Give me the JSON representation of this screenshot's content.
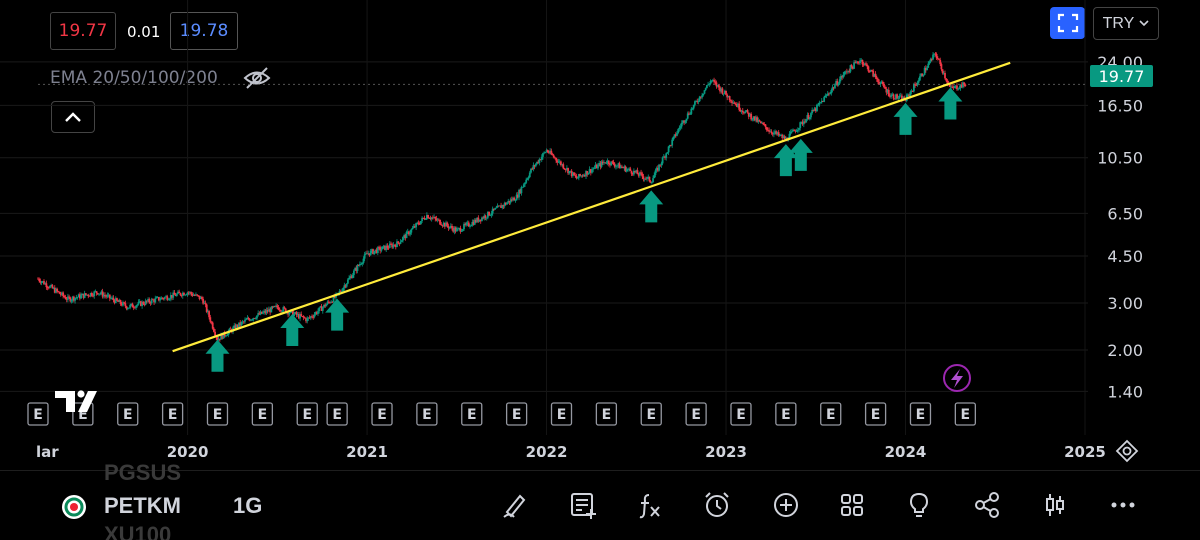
{
  "quote": {
    "bid": "19.77",
    "spread": "0.01",
    "ask": "19.78"
  },
  "indicator": {
    "label": "EMA 20/50/100/200"
  },
  "currency": {
    "label": "TRY"
  },
  "last_price": "19.77",
  "yaxis": {
    "labels": [
      "24.00",
      "16.50",
      "10.50",
      "6.50",
      "4.50",
      "3.00",
      "2.00",
      "1.40"
    ]
  },
  "xaxis": {
    "labels": [
      "lar",
      "2020",
      "2021",
      "2022",
      "2023",
      "2024",
      "2025"
    ]
  },
  "earnings_label": "E",
  "symbol": {
    "name": "PETKM",
    "interval": "1G",
    "ghost_above": "PGSUS",
    "ghost_below": "XU100"
  },
  "colors": {
    "up": "#089981",
    "down": "#f23645",
    "trendline": "#ffeb3b",
    "arrow": "#089981",
    "accent": "#2962ff"
  },
  "chart_data": {
    "type": "candlestick",
    "yscale": "log",
    "ylim": [
      1.3,
      28
    ],
    "xlim": [
      "2019-03",
      "2025-01"
    ],
    "yticks": [
      24.0,
      16.5,
      10.5,
      6.5,
      4.5,
      3.0,
      2.0,
      1.4
    ],
    "price_path": [
      [
        "2019-03",
        3.7
      ],
      [
        "2019-05",
        3.1
      ],
      [
        "2019-07",
        3.3
      ],
      [
        "2019-09",
        2.9
      ],
      [
        "2019-11",
        3.1
      ],
      [
        "2020-01",
        3.3
      ],
      [
        "2020-02",
        3.1
      ],
      [
        "2020-03",
        2.2
      ],
      [
        "2020-05",
        2.6
      ],
      [
        "2020-07",
        2.9
      ],
      [
        "2020-09",
        2.6
      ],
      [
        "2020-11",
        3.2
      ],
      [
        "2021-01",
        4.6
      ],
      [
        "2021-03",
        5.0
      ],
      [
        "2021-05",
        6.4
      ],
      [
        "2021-07",
        5.6
      ],
      [
        "2021-09",
        6.4
      ],
      [
        "2021-11",
        7.5
      ],
      [
        "2021-12",
        9.5
      ],
      [
        "2022-01",
        11.2
      ],
      [
        "2022-03",
        8.8
      ],
      [
        "2022-05",
        10.2
      ],
      [
        "2022-07",
        9.2
      ],
      [
        "2022-08",
        8.6
      ],
      [
        "2022-10",
        14.0
      ],
      [
        "2022-12",
        20.5
      ],
      [
        "2023-02",
        16.0
      ],
      [
        "2023-04",
        13.2
      ],
      [
        "2023-05",
        12.3
      ],
      [
        "2023-07",
        16.0
      ],
      [
        "2023-09",
        22.0
      ],
      [
        "2023-10",
        24.5
      ],
      [
        "2023-12",
        18.0
      ],
      [
        "2024-01",
        17.3
      ],
      [
        "2024-03",
        25.8
      ],
      [
        "2024-04",
        19.0
      ],
      [
        "2024-05",
        19.77
      ]
    ],
    "trendline": [
      [
        "2019-12",
        1.98
      ],
      [
        "2024-08",
        23.8
      ]
    ],
    "support_arrows": [
      "2020-03",
      "2020-08",
      "2020-11",
      "2022-08",
      "2023-05",
      "2023-06",
      "2024-01",
      "2024-04"
    ],
    "earnings_markers": [
      "2019-03",
      "2019-06",
      "2019-09",
      "2019-12",
      "2020-03",
      "2020-06",
      "2020-09",
      "2020-11",
      "2021-02",
      "2021-05",
      "2021-08",
      "2021-11",
      "2022-02",
      "2022-05",
      "2022-08",
      "2022-11",
      "2023-02",
      "2023-05",
      "2023-08",
      "2023-11",
      "2024-02",
      "2024-05"
    ],
    "upcoming_earnings": "2024-05",
    "last_price": 19.77
  }
}
